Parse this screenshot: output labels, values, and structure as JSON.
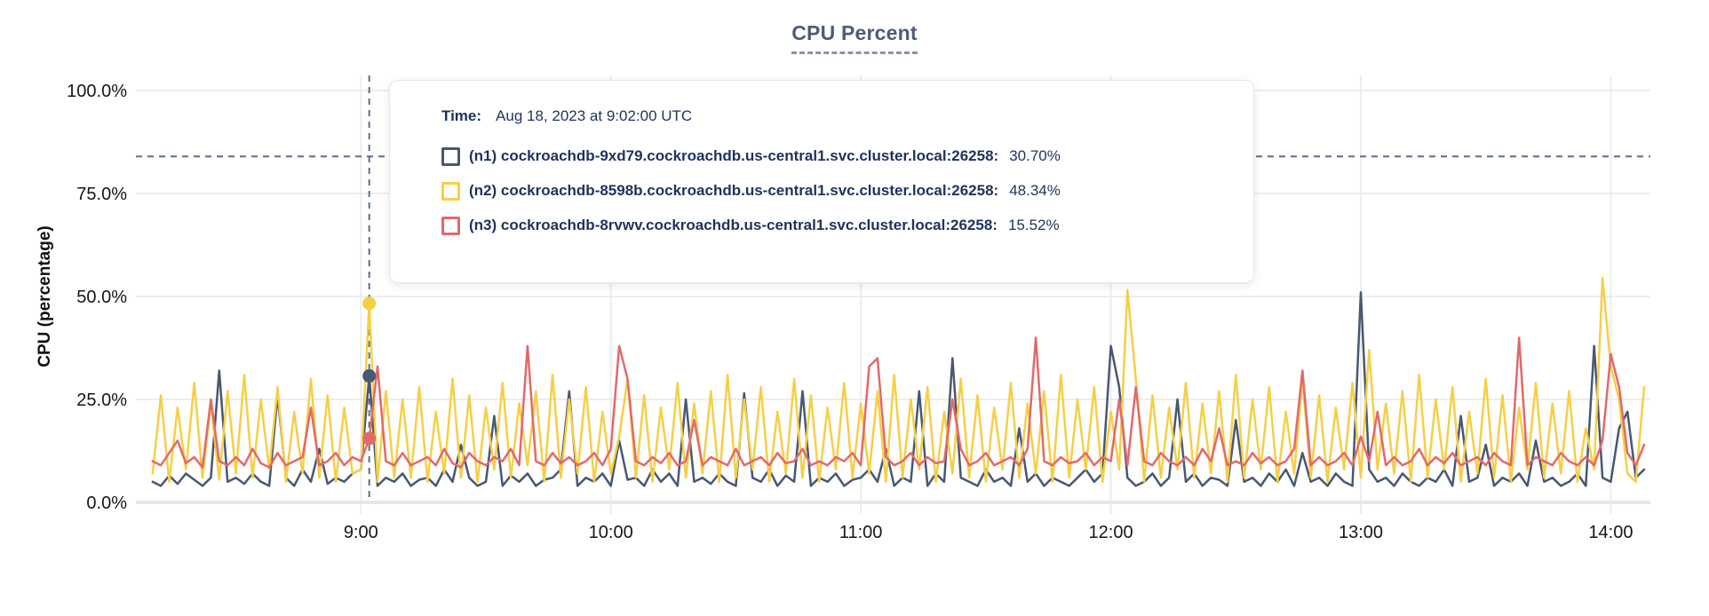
{
  "title": {
    "text": "CPU Percent"
  },
  "tooltip": {
    "time_label": "Time:",
    "time_value": "Aug 18, 2023 at 9:02:00 UTC",
    "rows": [
      {
        "name": "(n1) cockroachdb-9xd79.cockroachdb.us-central1.svc.cluster.local:26258:",
        "value": "30.70%",
        "color": "#475872"
      },
      {
        "name": "(n2) cockroachdb-8598b.cockroachdb.us-central1.svc.cluster.local:26258:",
        "value": "48.34%",
        "color": "#f6cf47"
      },
      {
        "name": "(n3) cockroachdb-8rvwv.cockroachdb.us-central1.svc.cluster.local:26258:",
        "value": "15.52%",
        "color": "#e2696a"
      }
    ]
  },
  "chart_data": {
    "type": "line",
    "title": "CPU Percent",
    "xlabel": "",
    "ylabel": "CPU (percentage)",
    "ylim": [
      0,
      100
    ],
    "grid": true,
    "legend_position": "tooltip-overlay",
    "y_ticks": [
      {
        "value": 100,
        "label": "100.0%"
      },
      {
        "value": 75,
        "label": "75.0%"
      },
      {
        "value": 50,
        "label": "50.0%"
      },
      {
        "value": 25,
        "label": "25.0%"
      },
      {
        "value": 0,
        "label": "0.0%"
      }
    ],
    "x_domain_minutes": [
      486,
      849.5
    ],
    "x_ticks": [
      {
        "minutes": 540,
        "label": "9:00"
      },
      {
        "minutes": 600,
        "label": "10:00"
      },
      {
        "minutes": 660,
        "label": "11:00"
      },
      {
        "minutes": 720,
        "label": "12:00"
      },
      {
        "minutes": 780,
        "label": "13:00"
      },
      {
        "minutes": 840,
        "label": "14:00"
      }
    ],
    "sample_start_minutes": 490,
    "sample_step_minutes": 2,
    "cursor": {
      "index": 26,
      "minutes": 542,
      "y_percent": 84,
      "color": "#5c6f86"
    },
    "series": [
      {
        "name": "(n1) cockroachdb-9xd79.cockroachdb.us-central1.svc.cluster.local:26258",
        "color": "#475872",
        "hover_value": 30.7,
        "values": [
          5,
          4,
          6.5,
          4.5,
          7,
          5.5,
          4,
          6,
          32,
          5,
          6,
          4.5,
          7,
          5,
          4,
          26,
          6,
          4,
          8,
          5,
          13,
          4.5,
          6,
          5,
          7,
          8,
          30.7,
          4,
          6,
          5,
          7,
          4,
          5.5,
          6,
          4,
          8,
          5,
          14,
          6,
          4,
          5,
          21,
          4,
          6.5,
          5,
          7,
          4,
          5.5,
          6,
          8,
          27,
          4,
          6,
          5,
          7,
          4,
          15,
          5.5,
          6,
          4,
          8,
          5,
          7,
          4,
          25,
          5,
          6,
          4.5,
          7,
          5,
          4,
          26.5,
          6,
          5,
          8,
          4,
          6.5,
          5,
          27,
          4,
          6,
          5,
          7,
          4,
          5.5,
          6,
          8,
          5,
          13,
          4,
          6,
          5,
          27,
          4,
          7,
          5,
          35,
          6,
          5,
          4,
          8,
          5,
          6,
          4,
          18,
          5,
          7,
          4,
          6,
          5,
          4,
          6,
          8,
          5,
          7,
          38,
          28,
          6,
          4,
          5,
          7,
          4,
          6,
          25,
          5,
          7,
          4,
          6,
          5.5,
          4,
          20,
          5,
          6,
          4,
          7,
          5,
          8,
          4,
          12,
          5,
          6,
          4,
          7,
          5,
          4,
          51,
          8,
          5,
          6,
          4,
          7,
          5,
          4,
          6,
          5,
          8,
          4,
          21,
          5,
          6,
          14,
          4,
          6,
          5,
          7,
          4,
          15,
          5,
          6,
          4,
          5,
          7,
          4,
          38,
          6,
          5,
          18,
          22,
          6,
          8
        ]
      },
      {
        "name": "(n2) cockroachdb-8598b.cockroachdb.us-central1.svc.cluster.local:26258",
        "color": "#f6cf47",
        "hover_value": 48.34,
        "values": [
          7,
          26,
          5,
          23,
          8,
          29,
          6,
          24,
          5.5,
          27,
          7,
          31,
          6,
          25,
          8,
          28,
          5,
          22,
          7,
          30,
          6,
          26,
          5,
          23,
          7,
          8,
          48.34,
          5,
          27,
          6,
          25,
          6,
          28,
          5,
          22,
          7,
          30,
          6,
          26,
          5,
          23,
          8,
          29,
          6,
          24,
          9,
          27,
          5,
          31,
          6,
          25,
          7,
          28,
          5,
          22,
          7,
          16,
          30,
          6,
          26,
          5,
          23,
          8,
          29,
          6,
          24,
          7,
          27,
          5,
          31,
          6,
          25,
          8,
          28,
          5,
          22,
          7,
          30,
          6,
          26,
          5,
          23,
          8,
          29,
          6,
          24,
          7,
          27,
          5,
          31,
          6,
          25,
          8,
          28,
          5,
          22,
          7,
          30,
          6,
          26,
          5,
          23,
          8,
          29,
          6,
          24,
          7,
          27,
          5,
          31,
          6,
          25,
          8,
          28,
          5,
          22,
          8,
          51.5,
          30,
          5,
          26,
          6,
          23,
          8,
          29,
          6,
          24,
          7,
          27,
          5,
          31,
          6,
          25,
          8,
          28,
          5,
          22,
          7,
          30,
          6,
          26,
          5,
          23,
          8,
          29,
          6,
          37,
          8,
          24,
          7,
          27,
          5,
          31,
          6,
          25,
          8,
          28,
          5,
          22,
          7,
          30,
          6,
          26,
          5,
          23,
          8,
          29,
          6,
          24,
          7,
          27,
          5,
          18,
          8,
          54.5,
          33,
          25,
          7,
          5,
          28
        ]
      },
      {
        "name": "(n3) cockroachdb-8rvwv.cockroachdb.us-central1.svc.cluster.local:26258",
        "color": "#e2696a",
        "hover_value": 15.52,
        "values": [
          10,
          9,
          12,
          15,
          9.5,
          11,
          8.5,
          25,
          10,
          9,
          11,
          9,
          13,
          9.5,
          8.5,
          12,
          9,
          10,
          11,
          23,
          9,
          10,
          12,
          9,
          11,
          10,
          15.52,
          33,
          10,
          9,
          12,
          9,
          10,
          11,
          9,
          13,
          9.5,
          8.5,
          12,
          10,
          9,
          11,
          10,
          13,
          9,
          38,
          10,
          9,
          12,
          9.5,
          11,
          9,
          10,
          12,
          9,
          13,
          38,
          30,
          10,
          9,
          11,
          9.5,
          12,
          9,
          10,
          20,
          9,
          11,
          10,
          9,
          13,
          9,
          10,
          11,
          9,
          12,
          9.5,
          10,
          13,
          9,
          10,
          9,
          11,
          10,
          12,
          9,
          33,
          35,
          11,
          9,
          10,
          12,
          9,
          11,
          9.5,
          10,
          25,
          13,
          9,
          10,
          12,
          9,
          10,
          11,
          9,
          13,
          40,
          10,
          9,
          11,
          9.5,
          10,
          12,
          9,
          11,
          10,
          25,
          9,
          28,
          10,
          9,
          12,
          10,
          9,
          11,
          9,
          13,
          10,
          18,
          9,
          10,
          9,
          12,
          9.5,
          11,
          9,
          10,
          13,
          32,
          9,
          11,
          9,
          10,
          12,
          9,
          16,
          10,
          22,
          9,
          11,
          9,
          10,
          13,
          9,
          11,
          9.5,
          12,
          9,
          10,
          11,
          9,
          12,
          10,
          9,
          40,
          9,
          11,
          10,
          9,
          12,
          10,
          9,
          11,
          9,
          15,
          36,
          28,
          12,
          9,
          14
        ]
      }
    ]
  }
}
